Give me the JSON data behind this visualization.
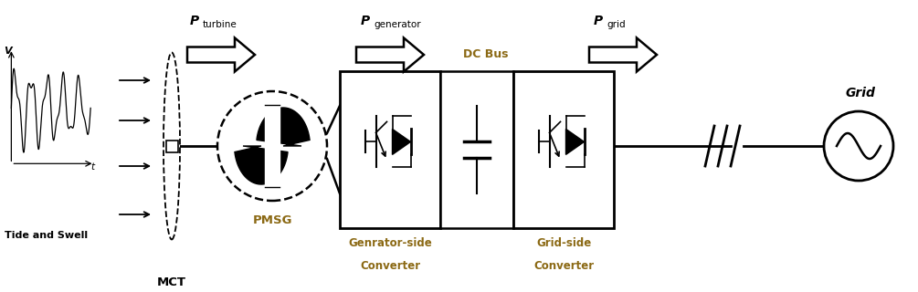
{
  "fig_width": 10.05,
  "fig_height": 3.2,
  "dpi": 100,
  "bg_color": "#ffffff",
  "text_color": "#000000",
  "teal_color": "#8B6914",
  "labels": {
    "P_turbine_main": "P",
    "P_turbine_sub": "turbine",
    "P_generator_main": "P",
    "P_generator_sub": "generator",
    "P_grid_main": "P",
    "P_grid_sub": "grid",
    "PMSG": "PMSG",
    "MCT": "MCT",
    "gen_converter_1": "Genrator-side",
    "gen_converter_2": "Converter",
    "grid_converter_1": "Grid-side",
    "grid_converter_2": "Converter",
    "DC_bus": "DC Bus",
    "Grid": "Grid",
    "tide_swell": "Tide and Swell",
    "V_label": "V",
    "t_label": "t"
  }
}
